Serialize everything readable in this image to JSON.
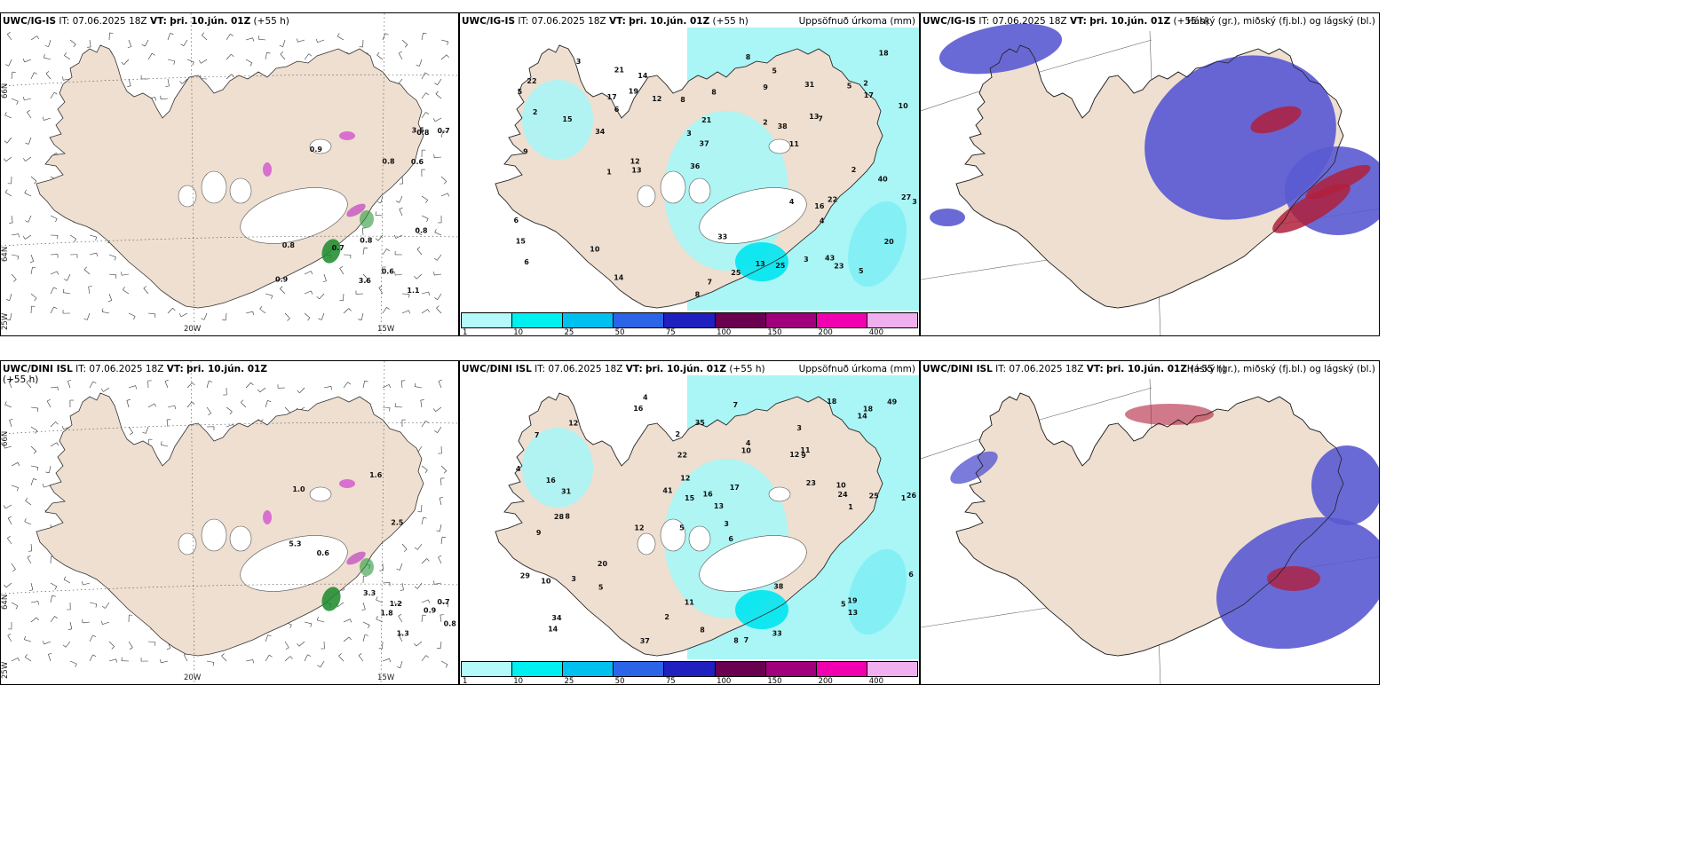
{
  "panels": [
    {
      "id": "tl",
      "model": "UWC/IG-IS",
      "run_label": "IT:",
      "run": "07.06.2025 18Z",
      "valid_label": "VT:",
      "valid": "þri. 10.jún. 01Z",
      "lead": "(+55 h)",
      "right_title": ""
    },
    {
      "id": "tm",
      "model": "UWC/IG-IS",
      "run_label": "IT:",
      "run": "07.06.2025 18Z",
      "valid_label": "VT:",
      "valid": "þri. 10.jún. 01Z",
      "lead": "(+55 h)",
      "right_title": "Uppsöfnuð úrkoma (mm)"
    },
    {
      "id": "tr",
      "model": "UWC/IG-IS",
      "run_label": "IT:",
      "run": "07.06.2025 18Z",
      "valid_label": "VT:",
      "valid": "þri. 10.jún. 01Z",
      "lead": "(+55 h)",
      "right_title": "Háský (gr.), miðský (fj.bl.) og lágský (bl.)"
    },
    {
      "id": "bl",
      "model": "UWC/DINI ISL",
      "run_label": "IT:",
      "run": "07.06.2025 18Z",
      "valid_label": "VT:",
      "valid": "þri. 10.jún. 01Z",
      "lead": "(+55 h)",
      "right_title": ""
    },
    {
      "id": "bm",
      "model": "UWC/DINI ISL",
      "run_label": "IT:",
      "run": "07.06.2025 18Z",
      "valid_label": "VT:",
      "valid": "þri. 10.jún. 01Z",
      "lead": "(+55 h)",
      "right_title": "Uppsöfnuð úrkoma (mm)"
    },
    {
      "id": "br",
      "model": "UWC/DINI ISL",
      "run_label": "IT:",
      "run": "07.06.2025 18Z",
      "valid_label": "VT:",
      "valid": "þri. 10.jún. 01Z",
      "lead": "(+55 h)",
      "right_title": "Háský (gr.), miðský (fj.bl.) og lágský (bl.)"
    }
  ],
  "grid_labels": {
    "lat_66": "66N",
    "lat_64": "64N",
    "lon_20": "20W",
    "lon_15": "15W",
    "lon_25": "25W"
  },
  "colorbar": {
    "labels": [
      "1",
      "10",
      "25",
      "50",
      "75",
      "100",
      "150",
      "200",
      "400"
    ],
    "colors": [
      "#b4fafa",
      "#00f0f0",
      "#00c0f0",
      "#2c64e8",
      "#2020c0",
      "#6a0050",
      "#a0007c",
      "#f000b0",
      "#f0b0f0"
    ]
  },
  "colors": {
    "land": "#eedfd0",
    "precip_light": "#aaf5f5",
    "cloud_mid": "#5a5ad2",
    "cloud_low": "#4fa7ff",
    "cloud_high": "#b0203c",
    "gust_green": "#1a8a2a"
  },
  "precip_top": [
    "2",
    "6",
    "11",
    "7",
    "5",
    "8",
    "4",
    "13",
    "2",
    "3",
    "27",
    "19",
    "13",
    "10",
    "9",
    "14",
    "12",
    "8",
    "5",
    "13",
    "23",
    "40",
    "37",
    "33",
    "31",
    "34",
    "17",
    "5",
    "3",
    "1",
    "6",
    "25",
    "18",
    "15",
    "22",
    "21",
    "12",
    "9",
    "8",
    "15",
    "7",
    "17",
    "3",
    "43",
    "25",
    "10",
    "5",
    "2",
    "20",
    "22",
    "21",
    "38",
    "36",
    "16",
    "8",
    "14",
    "6",
    "4",
    "3",
    "2"
  ],
  "precip_bottom": [
    "4",
    "3",
    "1",
    "5",
    "6",
    "8",
    "7",
    "12",
    "9",
    "10",
    "13",
    "14",
    "16",
    "12",
    "8",
    "7",
    "11",
    "18",
    "23",
    "20",
    "31",
    "28",
    "26",
    "25",
    "29",
    "16",
    "15",
    "24",
    "19",
    "10",
    "5",
    "4",
    "3",
    "41",
    "38",
    "6",
    "10",
    "2",
    "49",
    "35",
    "34",
    "37",
    "33",
    "12",
    "8",
    "9",
    "13",
    "11",
    "4",
    "3",
    "2",
    "1",
    "17",
    "14",
    "7",
    "5",
    "12",
    "16",
    "18",
    "22"
  ],
  "gust_top": [
    "0.8",
    "0.9",
    "0.7",
    "0.8",
    "0.6",
    "3.6",
    "3.5",
    "1.1",
    "0.6",
    "0.8",
    "0.8",
    "0.8",
    "0.9",
    "0.7"
  ],
  "gust_bottom": [
    "0.9",
    "0.7",
    "3.3",
    "1.6",
    "1.2",
    "2.5",
    "1.3",
    "0.8",
    "1.0",
    "1.8",
    "5.3",
    "0.6"
  ]
}
